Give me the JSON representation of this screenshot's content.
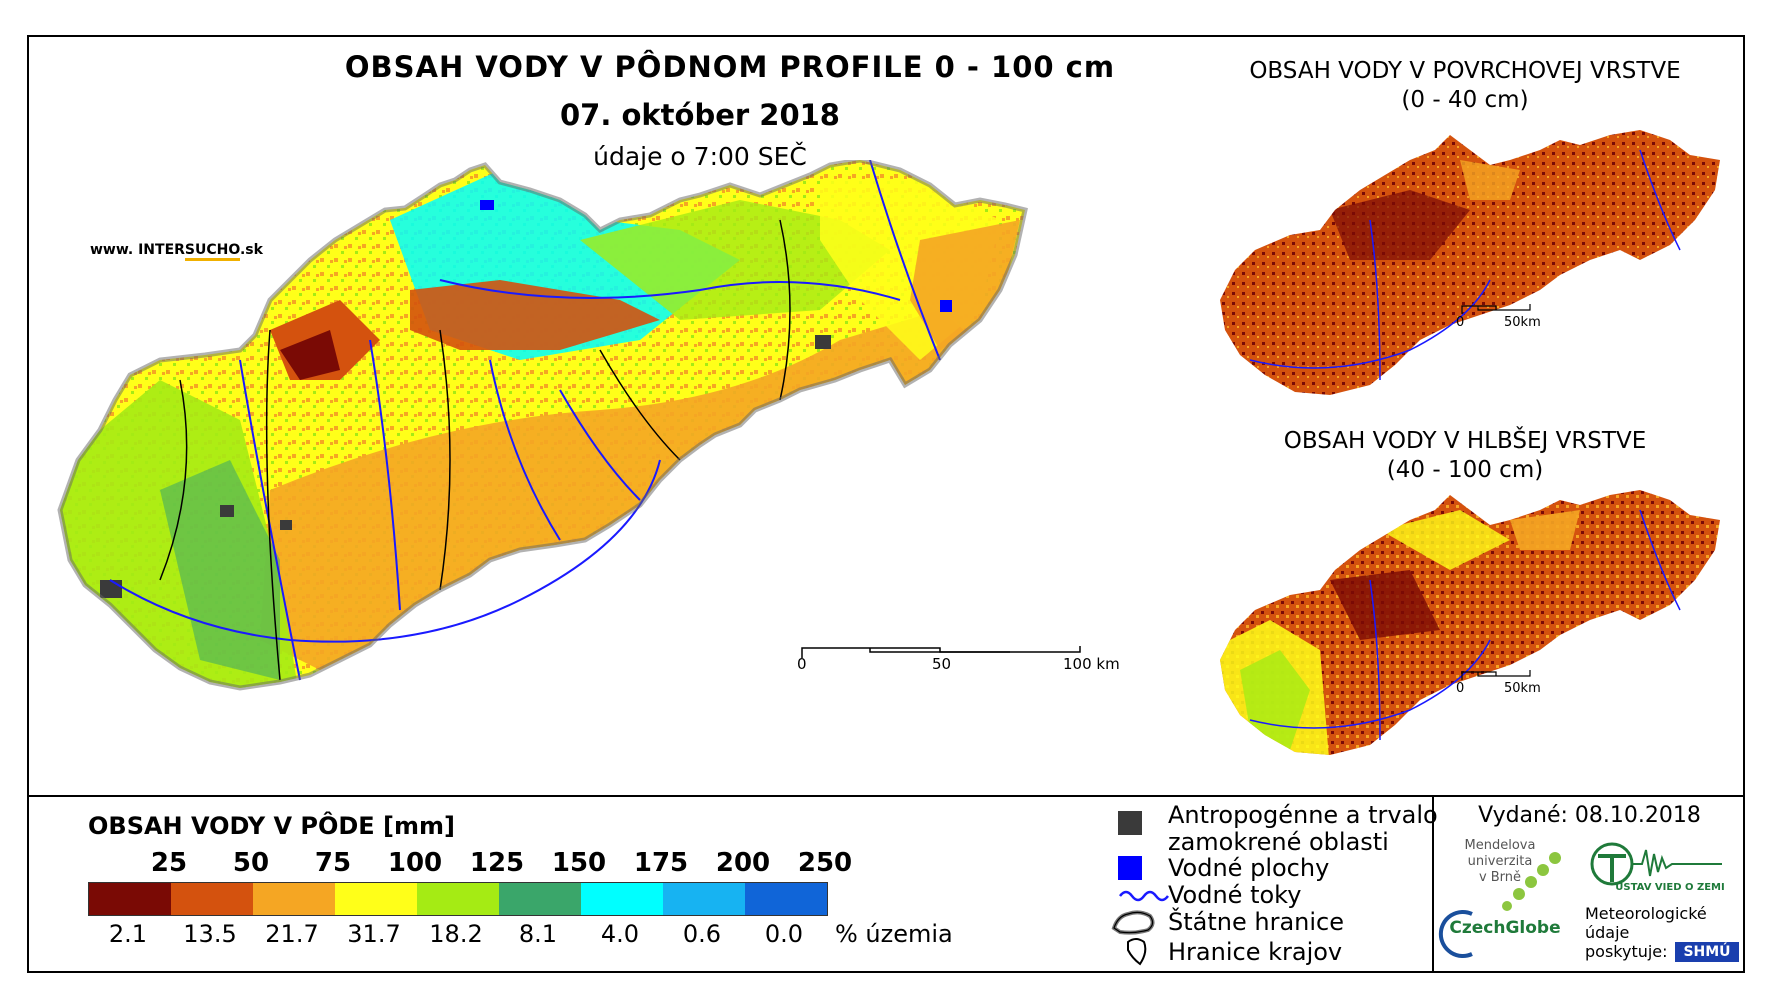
{
  "title": {
    "main": "OBSAH VODY V PÔDNOM PROFILE 0 - 100 cm",
    "date": "07. október 2018",
    "time": "údaje o 7:00 SEČ"
  },
  "website": {
    "prefix": "www. INTER",
    "highlight": "SUCHO",
    "suffix": ".sk"
  },
  "scale_main": {
    "labels": [
      "0",
      "50",
      "100 km"
    ]
  },
  "inset_surface": {
    "title_line1": "OBSAH VODY V POVRCHOVEJ VRSTVE",
    "title_line2": "(0 - 40 cm)",
    "scale_labels": [
      "0",
      "50km"
    ]
  },
  "inset_deep": {
    "title_line1": "OBSAH VODY V HLBŠEJ VRSTVE",
    "title_line2": "(40 - 100 cm)",
    "scale_labels": [
      "0",
      "50km"
    ]
  },
  "legend": {
    "title": "OBSAH VODY V PÔDE [mm]",
    "thresholds": [
      "25",
      "50",
      "75",
      "100",
      "125",
      "150",
      "175",
      "200",
      "250"
    ],
    "colors": [
      "#7a0a05",
      "#d4520e",
      "#f5a623",
      "#ffff19",
      "#a5eb14",
      "#3aa66a",
      "#00ffff",
      "#17b3f2",
      "#1065d8"
    ],
    "percentages": [
      "2.1",
      "13.5",
      "21.7",
      "31.7",
      "18.2",
      "8.1",
      "4.0",
      "0.6",
      "0.0"
    ],
    "pct_unit": "% územia"
  },
  "map_legend": {
    "anthropogenic_line1": "Antropogénne a trvalo",
    "anthropogenic_line2": "zamokrené oblasti",
    "water_bodies": "Vodné plochy",
    "rivers": "Vodné toky",
    "state_border": "Štátne hranice",
    "region_border": "Hranice krajov"
  },
  "issued": "Vydané: 08.10.2018",
  "logos": {
    "mendel": "Mendelova\nuniverzita\nv Brně",
    "czechglobe": "CzechGlobe",
    "uvgz": "ÚSTAV VIED O ZEMI",
    "meteo": "Meteorologické\núdaje\nposkytuje:",
    "shmu": "SHMÚ"
  },
  "colors": {
    "river": "#1a1aff",
    "water": "#0000ff",
    "urban": "#3a3a3a",
    "border": "#000000"
  }
}
